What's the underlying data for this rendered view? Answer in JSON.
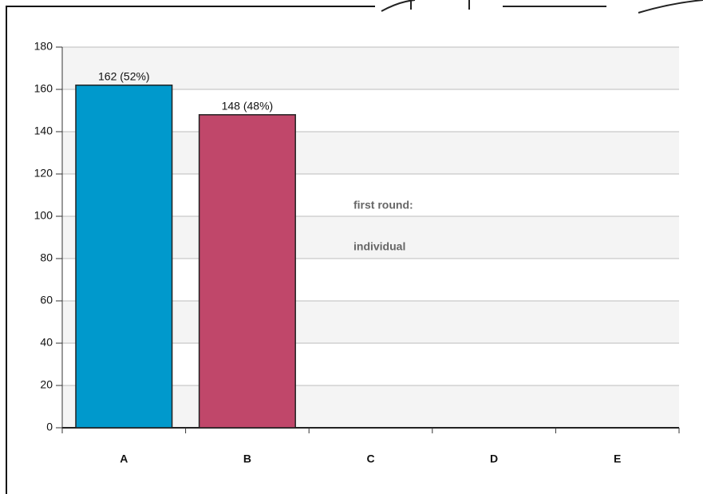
{
  "chart_data": {
    "type": "bar",
    "categories": [
      "A",
      "B",
      "C",
      "D",
      "E"
    ],
    "values": [
      162,
      148,
      0,
      0,
      0
    ],
    "value_labels": [
      "162 (52%)",
      "148 (48%)",
      null,
      null,
      null
    ],
    "colors": [
      "#0099cc",
      "#c0476a",
      "#0099cc",
      "#0099cc",
      "#0099cc"
    ],
    "ylim": [
      0,
      180
    ],
    "yticks": [
      0,
      20,
      40,
      60,
      80,
      100,
      120,
      140,
      160,
      180
    ],
    "grid": true,
    "annotation": [
      "first round:",
      "individual"
    ]
  }
}
